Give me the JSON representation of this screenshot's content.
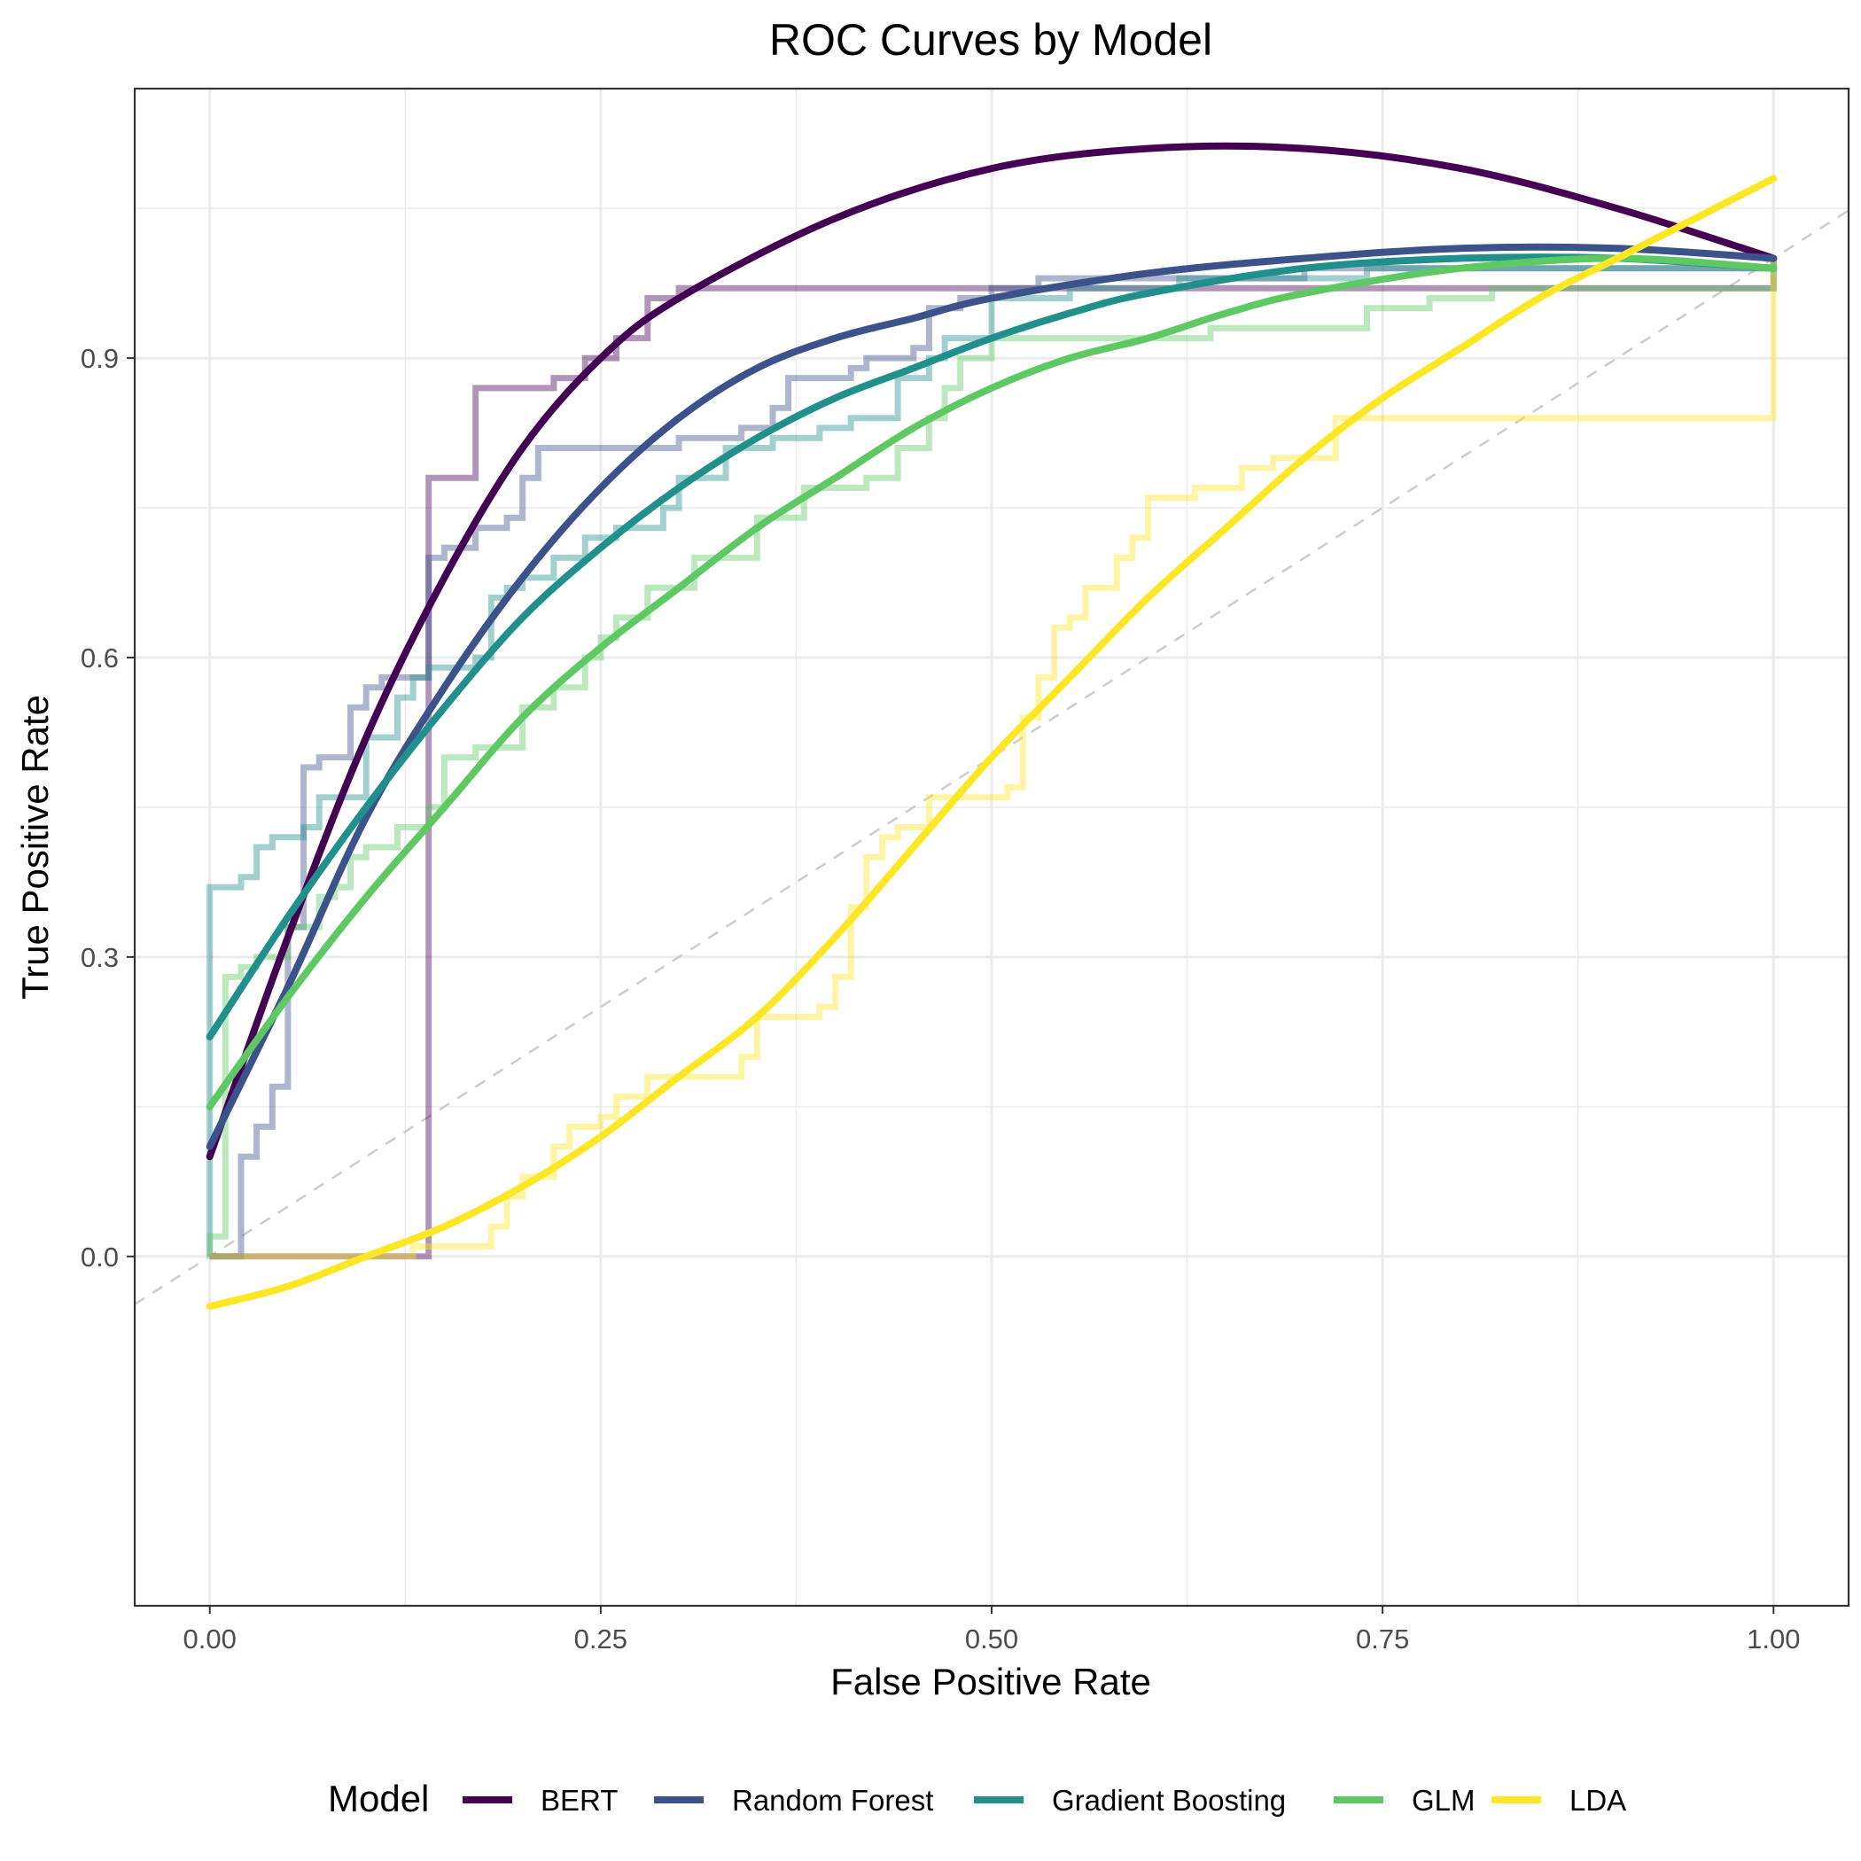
{
  "chart_data": {
    "type": "line",
    "title": "ROC Curves by Model",
    "xlabel": "False Positive Rate",
    "ylabel": "True Positive Rate",
    "xlim": [
      -0.048,
      1.048
    ],
    "ylim": [
      -0.35,
      1.17
    ],
    "x_ticks": [
      0.0,
      0.25,
      0.5,
      0.75,
      1.0
    ],
    "x_tick_labels": [
      "0.00",
      "0.25",
      "0.50",
      "0.75",
      "1.00"
    ],
    "y_ticks": [
      0.0,
      0.3,
      0.6,
      0.9
    ],
    "y_tick_labels": [
      "0.0",
      "0.3",
      "0.6",
      "0.9"
    ],
    "grid": true,
    "reference_line": {
      "x": [
        0,
        1
      ],
      "y": [
        0,
        1
      ],
      "style": "dashed",
      "color": "#cccccc"
    },
    "legend": {
      "title": "Model",
      "position": "bottom"
    },
    "series": [
      {
        "name": "BERT",
        "color": "#440154",
        "roc_step": {
          "x": [
            0.0,
            0.14,
            0.14,
            0.14,
            0.14,
            0.14,
            0.14,
            0.17,
            0.17,
            0.17,
            0.22,
            0.22,
            0.24,
            0.24,
            0.26,
            0.26,
            0.28,
            0.28,
            0.3,
            0.3,
            1.0,
            1.0
          ],
          "y": [
            0.0,
            0.0,
            0.3,
            0.5,
            0.6,
            0.7,
            0.78,
            0.78,
            0.83,
            0.87,
            0.87,
            0.88,
            0.88,
            0.9,
            0.9,
            0.92,
            0.92,
            0.96,
            0.96,
            0.97,
            0.97,
            1.0
          ]
        },
        "smooth": {
          "x": [
            0.0,
            0.05,
            0.1,
            0.15,
            0.2,
            0.25,
            0.3,
            0.4,
            0.5,
            0.6,
            0.7,
            0.8,
            0.9,
            1.0
          ],
          "y": [
            0.1,
            0.32,
            0.52,
            0.68,
            0.81,
            0.9,
            0.96,
            1.04,
            1.09,
            1.11,
            1.11,
            1.09,
            1.05,
            1.0
          ]
        }
      },
      {
        "name": "Random Forest",
        "color": "#3b528b",
        "roc_step": {
          "x": [
            0.0,
            0.02,
            0.02,
            0.03,
            0.03,
            0.04,
            0.04,
            0.05,
            0.05,
            0.06,
            0.06,
            0.07,
            0.07,
            0.09,
            0.09,
            0.1,
            0.1,
            0.11,
            0.11,
            0.14,
            0.14,
            0.15,
            0.15,
            0.17,
            0.17,
            0.19,
            0.19,
            0.2,
            0.2,
            0.21,
            0.21,
            0.3,
            0.3,
            0.34,
            0.34,
            0.36,
            0.36,
            0.37,
            0.37,
            0.41,
            0.41,
            0.42,
            0.42,
            0.45,
            0.45,
            0.46,
            0.46,
            0.48,
            0.48,
            0.5,
            0.5,
            0.53,
            0.53,
            0.63,
            0.63,
            0.7,
            0.7,
            1.0,
            1.0
          ],
          "y": [
            0.0,
            0.0,
            0.1,
            0.1,
            0.13,
            0.13,
            0.17,
            0.17,
            0.33,
            0.33,
            0.49,
            0.49,
            0.5,
            0.5,
            0.55,
            0.55,
            0.57,
            0.57,
            0.58,
            0.58,
            0.7,
            0.7,
            0.71,
            0.71,
            0.73,
            0.73,
            0.74,
            0.74,
            0.78,
            0.78,
            0.81,
            0.81,
            0.82,
            0.82,
            0.83,
            0.83,
            0.85,
            0.85,
            0.88,
            0.88,
            0.89,
            0.89,
            0.9,
            0.9,
            0.91,
            0.91,
            0.95,
            0.95,
            0.96,
            0.96,
            0.97,
            0.97,
            0.98,
            0.98,
            0.98,
            0.98,
            0.99,
            0.99,
            1.0
          ]
        },
        "smooth": {
          "x": [
            0.0,
            0.05,
            0.1,
            0.15,
            0.2,
            0.25,
            0.3,
            0.35,
            0.4,
            0.45,
            0.5,
            0.6,
            0.7,
            0.8,
            0.9,
            1.0
          ],
          "y": [
            0.11,
            0.27,
            0.44,
            0.57,
            0.68,
            0.77,
            0.84,
            0.89,
            0.92,
            0.94,
            0.96,
            0.985,
            1.0,
            1.01,
            1.01,
            1.0
          ]
        }
      },
      {
        "name": "Gradient Boosting",
        "color": "#21908c",
        "roc_step": {
          "x": [
            0.0,
            0.0,
            0.02,
            0.02,
            0.03,
            0.03,
            0.04,
            0.04,
            0.06,
            0.06,
            0.07,
            0.07,
            0.1,
            0.1,
            0.12,
            0.12,
            0.13,
            0.13,
            0.14,
            0.14,
            0.17,
            0.17,
            0.18,
            0.18,
            0.19,
            0.19,
            0.2,
            0.2,
            0.22,
            0.22,
            0.24,
            0.24,
            0.26,
            0.26,
            0.29,
            0.29,
            0.3,
            0.3,
            0.33,
            0.33,
            0.36,
            0.36,
            0.39,
            0.39,
            0.41,
            0.41,
            0.44,
            0.44,
            0.46,
            0.46,
            0.47,
            0.47,
            0.5,
            0.5,
            0.55,
            0.55,
            0.62,
            0.62,
            0.74,
            0.74,
            1.0,
            1.0
          ],
          "y": [
            0.0,
            0.37,
            0.37,
            0.38,
            0.38,
            0.41,
            0.41,
            0.42,
            0.42,
            0.43,
            0.43,
            0.46,
            0.46,
            0.52,
            0.52,
            0.56,
            0.56,
            0.58,
            0.58,
            0.59,
            0.59,
            0.6,
            0.6,
            0.66,
            0.66,
            0.67,
            0.67,
            0.68,
            0.68,
            0.7,
            0.7,
            0.72,
            0.72,
            0.73,
            0.73,
            0.75,
            0.75,
            0.78,
            0.78,
            0.81,
            0.81,
            0.82,
            0.82,
            0.83,
            0.83,
            0.84,
            0.84,
            0.88,
            0.88,
            0.9,
            0.9,
            0.92,
            0.92,
            0.96,
            0.96,
            0.97,
            0.97,
            0.98,
            0.98,
            0.99,
            0.99,
            1.0
          ]
        },
        "smooth": {
          "x": [
            0.0,
            0.05,
            0.1,
            0.15,
            0.2,
            0.25,
            0.3,
            0.35,
            0.4,
            0.45,
            0.5,
            0.55,
            0.6,
            0.7,
            0.8,
            0.9,
            1.0
          ],
          "y": [
            0.22,
            0.34,
            0.45,
            0.55,
            0.64,
            0.71,
            0.77,
            0.82,
            0.86,
            0.89,
            0.92,
            0.945,
            0.965,
            0.99,
            1.0,
            1.0,
            0.99
          ]
        }
      },
      {
        "name": "GLM",
        "color": "#5ec962",
        "roc_step": {
          "x": [
            0.0,
            0.0,
            0.01,
            0.01,
            0.02,
            0.02,
            0.03,
            0.03,
            0.05,
            0.05,
            0.07,
            0.07,
            0.08,
            0.08,
            0.09,
            0.09,
            0.1,
            0.1,
            0.12,
            0.12,
            0.14,
            0.14,
            0.15,
            0.15,
            0.17,
            0.17,
            0.2,
            0.2,
            0.22,
            0.22,
            0.24,
            0.24,
            0.25,
            0.25,
            0.26,
            0.26,
            0.28,
            0.28,
            0.31,
            0.31,
            0.35,
            0.35,
            0.38,
            0.38,
            0.42,
            0.42,
            0.44,
            0.44,
            0.46,
            0.46,
            0.47,
            0.47,
            0.48,
            0.48,
            0.5,
            0.5,
            0.64,
            0.64,
            0.74,
            0.74,
            0.78,
            0.78,
            0.82,
            0.82,
            1.0,
            1.0
          ],
          "y": [
            0.0,
            0.02,
            0.02,
            0.28,
            0.28,
            0.29,
            0.29,
            0.3,
            0.3,
            0.33,
            0.33,
            0.36,
            0.36,
            0.37,
            0.37,
            0.4,
            0.4,
            0.41,
            0.41,
            0.43,
            0.43,
            0.45,
            0.45,
            0.5,
            0.5,
            0.51,
            0.51,
            0.55,
            0.55,
            0.57,
            0.57,
            0.6,
            0.6,
            0.62,
            0.62,
            0.64,
            0.64,
            0.67,
            0.67,
            0.7,
            0.7,
            0.74,
            0.74,
            0.77,
            0.77,
            0.78,
            0.78,
            0.81,
            0.81,
            0.84,
            0.84,
            0.87,
            0.87,
            0.9,
            0.9,
            0.92,
            0.92,
            0.93,
            0.93,
            0.95,
            0.95,
            0.96,
            0.96,
            0.97,
            0.97,
            1.0
          ]
        },
        "smooth": {
          "x": [
            0.0,
            0.05,
            0.1,
            0.15,
            0.2,
            0.25,
            0.3,
            0.35,
            0.4,
            0.45,
            0.5,
            0.55,
            0.6,
            0.65,
            0.7,
            0.8,
            0.9,
            1.0
          ],
          "y": [
            0.15,
            0.26,
            0.36,
            0.45,
            0.54,
            0.61,
            0.67,
            0.73,
            0.78,
            0.83,
            0.87,
            0.9,
            0.92,
            0.945,
            0.965,
            0.99,
            1.0,
            0.99
          ]
        }
      },
      {
        "name": "LDA",
        "color": "#fde725",
        "roc_step": {
          "x": [
            0.0,
            0.13,
            0.13,
            0.18,
            0.18,
            0.19,
            0.19,
            0.2,
            0.2,
            0.22,
            0.22,
            0.23,
            0.23,
            0.25,
            0.25,
            0.26,
            0.26,
            0.28,
            0.28,
            0.34,
            0.34,
            0.35,
            0.35,
            0.39,
            0.39,
            0.4,
            0.4,
            0.41,
            0.41,
            0.42,
            0.42,
            0.43,
            0.43,
            0.44,
            0.44,
            0.46,
            0.46,
            0.51,
            0.51,
            0.52,
            0.52,
            0.53,
            0.53,
            0.54,
            0.54,
            0.55,
            0.55,
            0.56,
            0.56,
            0.58,
            0.58,
            0.59,
            0.59,
            0.6,
            0.6,
            0.63,
            0.63,
            0.66,
            0.66,
            0.68,
            0.68,
            0.72,
            0.72,
            0.73,
            0.73,
            1.0,
            1.0,
            1.0
          ],
          "y": [
            0.0,
            0.0,
            0.01,
            0.01,
            0.03,
            0.03,
            0.06,
            0.06,
            0.08,
            0.08,
            0.11,
            0.11,
            0.13,
            0.13,
            0.14,
            0.14,
            0.16,
            0.16,
            0.18,
            0.18,
            0.2,
            0.2,
            0.24,
            0.24,
            0.25,
            0.25,
            0.28,
            0.28,
            0.35,
            0.35,
            0.4,
            0.4,
            0.42,
            0.42,
            0.43,
            0.43,
            0.46,
            0.46,
            0.47,
            0.47,
            0.54,
            0.54,
            0.58,
            0.58,
            0.63,
            0.63,
            0.64,
            0.64,
            0.67,
            0.67,
            0.7,
            0.7,
            0.72,
            0.72,
            0.76,
            0.76,
            0.77,
            0.77,
            0.79,
            0.79,
            0.8,
            0.8,
            0.84,
            0.84,
            0.84,
            0.84,
            0.98,
            1.0
          ]
        },
        "smooth": {
          "x": [
            0.0,
            0.05,
            0.1,
            0.15,
            0.2,
            0.25,
            0.3,
            0.35,
            0.4,
            0.45,
            0.5,
            0.55,
            0.6,
            0.65,
            0.7,
            0.75,
            0.8,
            0.85,
            0.9,
            0.95,
            1.0
          ],
          "y": [
            -0.05,
            -0.03,
            0.0,
            0.03,
            0.07,
            0.12,
            0.18,
            0.24,
            0.32,
            0.41,
            0.5,
            0.58,
            0.66,
            0.73,
            0.8,
            0.86,
            0.91,
            0.96,
            1.0,
            1.04,
            1.08
          ]
        }
      }
    ]
  }
}
